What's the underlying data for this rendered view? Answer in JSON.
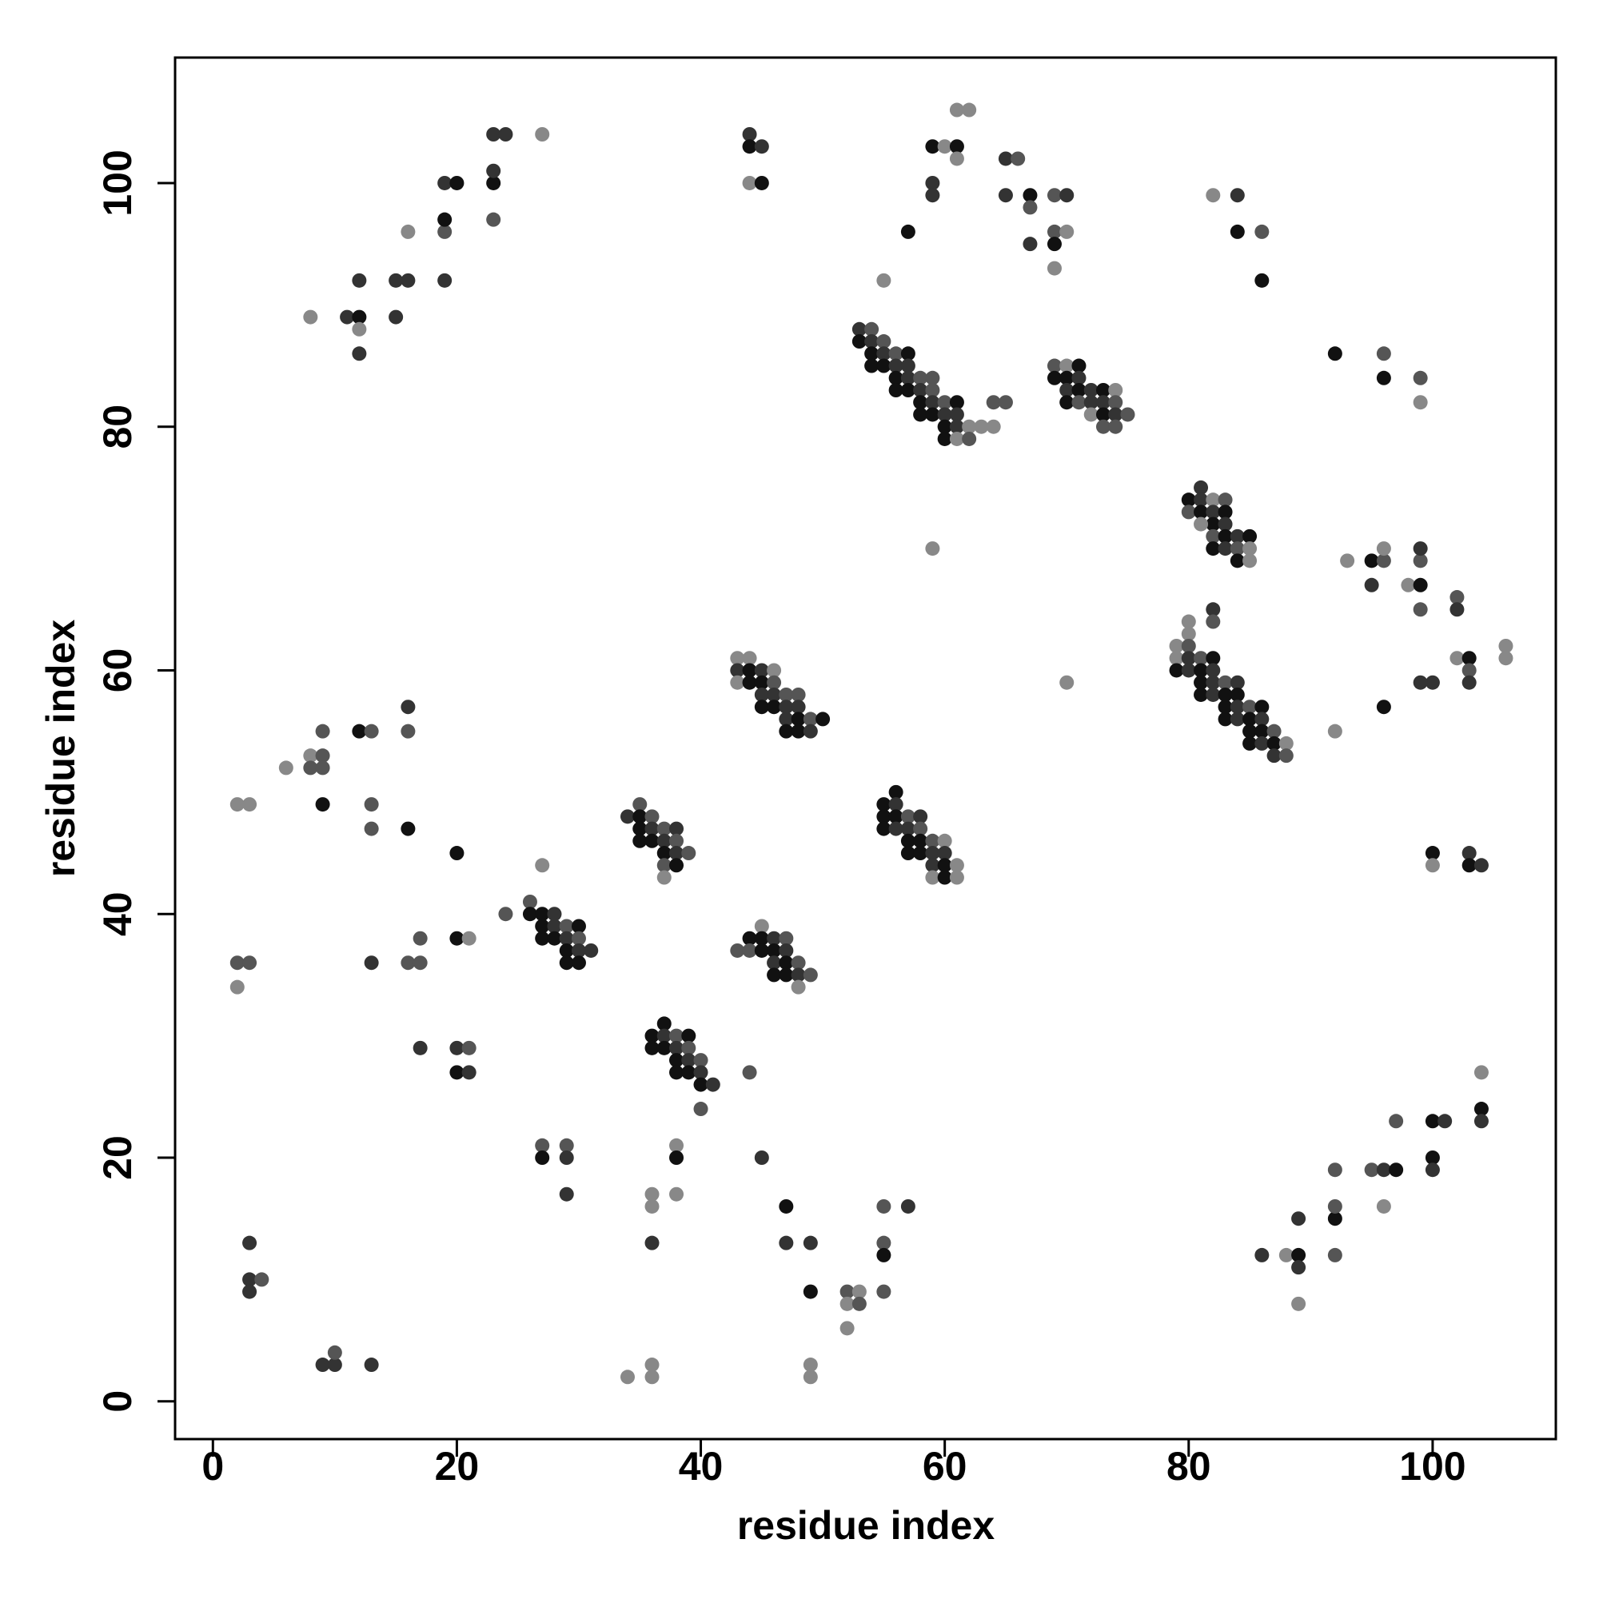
{
  "chart_data": {
    "type": "scatter",
    "x_label": "residue index",
    "y_label": "residue index",
    "xlim": [
      -3.1,
      110.1
    ],
    "ylim": [
      -3.1,
      110.3
    ],
    "xticks": [
      0,
      20,
      40,
      60,
      80,
      100
    ],
    "yticks": [
      0,
      20,
      40,
      60,
      80,
      100
    ],
    "x": [
      8,
      11,
      12,
      12,
      12,
      12,
      15,
      16,
      15,
      16,
      19,
      19,
      19,
      19,
      20,
      23,
      23,
      23,
      23,
      24,
      27,
      44,
      44,
      45,
      44,
      45,
      55,
      57,
      59,
      60,
      61,
      61,
      61,
      62,
      59,
      59,
      65,
      66,
      65,
      67,
      67,
      67,
      69,
      70,
      69,
      70,
      69,
      69,
      82,
      84,
      84,
      86,
      86,
      53,
      54,
      53,
      54,
      55,
      54,
      55,
      56,
      57,
      54,
      55,
      56,
      57,
      56,
      57,
      58,
      59,
      56,
      57,
      58,
      59,
      58,
      59,
      60,
      61,
      58,
      59,
      60,
      61,
      60,
      61,
      62,
      63,
      64,
      60,
      61,
      62,
      64,
      65,
      69,
      70,
      71,
      69,
      70,
      71,
      70,
      71,
      72,
      73,
      74,
      70,
      71,
      72,
      73,
      74,
      72,
      73,
      74,
      75,
      73,
      74,
      92,
      96,
      96,
      99,
      99,
      81,
      80,
      81,
      82,
      83,
      80,
      81,
      82,
      83,
      82,
      83,
      81,
      82,
      83,
      84,
      85,
      82,
      83,
      84,
      85,
      84,
      85,
      59,
      93,
      95,
      96,
      96,
      95,
      98,
      99,
      99,
      99,
      99,
      102,
      102,
      102,
      103,
      103,
      103,
      100,
      99,
      96,
      92,
      106,
      106,
      70,
      80,
      80,
      79,
      80,
      79,
      80,
      81,
      82,
      79,
      80,
      81,
      82,
      82,
      82,
      81,
      82,
      83,
      84,
      81,
      82,
      83,
      84,
      83,
      84,
      85,
      86,
      83,
      84,
      85,
      86,
      85,
      86,
      87,
      85,
      86,
      87,
      88,
      87,
      88,
      43,
      44,
      43,
      44,
      45,
      46,
      43,
      44,
      45,
      46,
      45,
      46,
      47,
      48,
      45,
      46,
      47,
      48,
      47,
      48,
      49,
      50,
      47,
      48,
      49,
      56,
      55,
      56,
      55,
      56,
      57,
      58,
      55,
      56,
      57,
      58,
      57,
      58,
      59,
      60,
      57,
      58,
      59,
      60,
      59,
      60,
      61,
      59,
      60,
      61,
      35,
      34,
      35,
      36,
      35,
      36,
      37,
      38,
      35,
      36,
      37,
      38,
      37,
      38,
      39,
      37,
      38,
      37,
      2,
      3,
      6,
      8,
      9,
      8,
      9,
      9,
      12,
      13,
      16,
      16,
      9,
      13,
      13,
      16,
      20,
      2,
      3,
      2,
      13,
      16,
      17,
      17,
      20,
      21,
      24,
      26,
      26,
      27,
      28,
      27,
      28,
      29,
      30,
      27,
      28,
      29,
      30,
      29,
      30,
      31,
      29,
      30,
      27,
      45,
      43,
      44,
      45,
      46,
      47,
      44,
      45,
      46,
      47,
      46,
      47,
      48,
      46,
      47,
      48,
      49,
      48,
      37,
      36,
      37,
      38,
      39,
      36,
      37,
      38,
      39,
      38,
      39,
      40,
      38,
      39,
      40,
      40,
      41,
      40,
      44,
      17,
      20,
      21,
      20,
      21,
      27,
      29,
      27,
      29,
      29,
      38,
      38,
      38,
      36,
      36,
      36,
      45,
      47,
      47,
      49,
      49,
      52,
      53,
      52,
      53,
      52,
      55,
      57,
      55,
      55,
      55,
      49,
      49,
      36,
      36,
      34,
      3,
      3,
      4,
      3,
      9,
      10,
      10,
      13,
      86,
      88,
      89,
      89,
      89,
      89,
      92,
      92,
      92,
      92,
      95,
      96,
      97,
      96,
      97,
      100,
      101,
      100,
      100,
      104,
      104,
      104,
      100,
      100,
      103,
      103,
      104
    ],
    "values": [
      89,
      89,
      89,
      88,
      86,
      92,
      92,
      92,
      89,
      96,
      96,
      97,
      92,
      100,
      100,
      97,
      100,
      101,
      104,
      104,
      104,
      104,
      103,
      103,
      100,
      100,
      92,
      96,
      103,
      103,
      103,
      102,
      106,
      106,
      100,
      99,
      102,
      102,
      99,
      99,
      98,
      95,
      99,
      99,
      96,
      96,
      95,
      93,
      99,
      99,
      96,
      96,
      92,
      88,
      88,
      87,
      87,
      87,
      86,
      86,
      86,
      86,
      85,
      85,
      85,
      85,
      84,
      84,
      84,
      84,
      83,
      83,
      83,
      83,
      82,
      82,
      82,
      82,
      81,
      81,
      81,
      81,
      80,
      80,
      80,
      80,
      80,
      79,
      79,
      79,
      82,
      82,
      85,
      85,
      85,
      84,
      84,
      84,
      83,
      83,
      83,
      83,
      83,
      82,
      82,
      82,
      82,
      82,
      81,
      81,
      81,
      81,
      80,
      80,
      86,
      86,
      84,
      84,
      82,
      75,
      74,
      74,
      74,
      74,
      73,
      73,
      73,
      73,
      72,
      72,
      72,
      71,
      71,
      71,
      71,
      70,
      70,
      70,
      70,
      69,
      69,
      70,
      69,
      69,
      69,
      70,
      67,
      67,
      67,
      69,
      70,
      65,
      66,
      65,
      61,
      61,
      60,
      59,
      59,
      59,
      57,
      55,
      62,
      61,
      59,
      64,
      63,
      62,
      62,
      61,
      61,
      61,
      61,
      60,
      60,
      60,
      60,
      65,
      64,
      59,
      59,
      59,
      59,
      58,
      58,
      58,
      58,
      57,
      57,
      57,
      57,
      56,
      56,
      56,
      56,
      55,
      55,
      55,
      54,
      54,
      54,
      54,
      53,
      53,
      61,
      61,
      60,
      60,
      60,
      60,
      59,
      59,
      59,
      59,
      58,
      58,
      58,
      58,
      57,
      57,
      57,
      57,
      56,
      56,
      56,
      56,
      55,
      55,
      55,
      50,
      49,
      49,
      48,
      48,
      48,
      48,
      47,
      47,
      47,
      47,
      46,
      46,
      46,
      46,
      45,
      45,
      45,
      45,
      44,
      44,
      44,
      43,
      43,
      43,
      49,
      48,
      48,
      48,
      47,
      47,
      47,
      47,
      46,
      46,
      46,
      46,
      45,
      45,
      45,
      44,
      44,
      43,
      49,
      49,
      52,
      53,
      53,
      52,
      52,
      55,
      55,
      55,
      57,
      55,
      49,
      49,
      47,
      47,
      45,
      36,
      36,
      34,
      36,
      36,
      36,
      38,
      38,
      38,
      40,
      41,
      40,
      40,
      40,
      39,
      39,
      39,
      39,
      38,
      38,
      38,
      38,
      37,
      37,
      37,
      36,
      36,
      44,
      39,
      37,
      38,
      38,
      38,
      38,
      37,
      37,
      37,
      37,
      36,
      36,
      36,
      35,
      35,
      35,
      35,
      34,
      31,
      30,
      30,
      30,
      30,
      29,
      29,
      29,
      29,
      28,
      28,
      28,
      27,
      27,
      27,
      26,
      26,
      24,
      27,
      29,
      29,
      29,
      27,
      27,
      21,
      21,
      20,
      20,
      17,
      21,
      20,
      17,
      17,
      16,
      13,
      20,
      16,
      13,
      13,
      9,
      9,
      9,
      8,
      8,
      6,
      16,
      16,
      13,
      12,
      9,
      3,
      2,
      3,
      2,
      2,
      13,
      10,
      10,
      9,
      3,
      3,
      4,
      3,
      12,
      12,
      12,
      11,
      15,
      8,
      12,
      15,
      16,
      19,
      19,
      19,
      19,
      16,
      23,
      23,
      23,
      20,
      19,
      24,
      23,
      27,
      45,
      44,
      45,
      44,
      44
    ],
    "colors": [
      "#888",
      "#333",
      "#111",
      "#888",
      "#333",
      "#333",
      "#333",
      "#333",
      "#333",
      "#888",
      "#555",
      "#111",
      "#333",
      "#333",
      "#111",
      "#555",
      "#111",
      "#333",
      "#333",
      "#333",
      "#888",
      "#333",
      "#111",
      "#333",
      "#888",
      "#111",
      "#888",
      "#111",
      "#111",
      "#888",
      "#111",
      "#888",
      "#888",
      "#888",
      "#333",
      "#333",
      "#333",
      "#555",
      "#333",
      "#111",
      "#555",
      "#333",
      "#555",
      "#333",
      "#555",
      "#888",
      "#111",
      "#888",
      "#888",
      "#333",
      "#111",
      "#555",
      "#111",
      "#333",
      "#555",
      "#111",
      "#333",
      "#555",
      "#111",
      "#333",
      "#555",
      "#111",
      "#111",
      "#111",
      "#333",
      "#333",
      "#111",
      "#333",
      "#555",
      "#555",
      "#111",
      "#111",
      "#333",
      "#555",
      "#111",
      "#333",
      "#555",
      "#111",
      "#111",
      "#111",
      "#333",
      "#333",
      "#111",
      "#333",
      "#888",
      "#888",
      "#888",
      "#111",
      "#888",
      "#555",
      "#555",
      "#555",
      "#555",
      "#888",
      "#111",
      "#111",
      "#111",
      "#333",
      "#333",
      "#111",
      "#333",
      "#111",
      "#888",
      "#111",
      "#555",
      "#333",
      "#333",
      "#555",
      "#888",
      "#111",
      "#333",
      "#555",
      "#555",
      "#555",
      "#111",
      "#555",
      "#111",
      "#555",
      "#888",
      "#333",
      "#111",
      "#333",
      "#888",
      "#555",
      "#555",
      "#111",
      "#333",
      "#111",
      "#111",
      "#333",
      "#888",
      "#555",
      "#111",
      "#333",
      "#111",
      "#111",
      "#333",
      "#555",
      "#888",
      "#111",
      "#888",
      "#888",
      "#888",
      "#111",
      "#555",
      "#888",
      "#333",
      "#888",
      "#111",
      "#555",
      "#333",
      "#555",
      "#555",
      "#333",
      "#888",
      "#111",
      "#555",
      "#333",
      "#333",
      "#333",
      "#111",
      "#888",
      "#888",
      "#888",
      "#888",
      "#888",
      "#888",
      "#888",
      "#555",
      "#888",
      "#333",
      "#555",
      "#111",
      "#111",
      "#333",
      "#111",
      "#333",
      "#333",
      "#555",
      "#111",
      "#333",
      "#555",
      "#333",
      "#111",
      "#333",
      "#111",
      "#111",
      "#111",
      "#333",
      "#555",
      "#111",
      "#111",
      "#333",
      "#111",
      "#333",
      "#111",
      "#111",
      "#555",
      "#111",
      "#333",
      "#111",
      "#888",
      "#333",
      "#555",
      "#888",
      "#888",
      "#333",
      "#111",
      "#333",
      "#888",
      "#888",
      "#111",
      "#111",
      "#555",
      "#333",
      "#333",
      "#555",
      "#555",
      "#111",
      "#111",
      "#333",
      "#333",
      "#333",
      "#111",
      "#555",
      "#111",
      "#111",
      "#111",
      "#333",
      "#111",
      "#111",
      "#333",
      "#111",
      "#111",
      "#555",
      "#333",
      "#111",
      "#333",
      "#333",
      "#555",
      "#111",
      "#111",
      "#555",
      "#888",
      "#111",
      "#111",
      "#333",
      "#333",
      "#333",
      "#111",
      "#888",
      "#888",
      "#111",
      "#888",
      "#555",
      "#333",
      "#111",
      "#555",
      "#111",
      "#333",
      "#555",
      "#333",
      "#111",
      "#111",
      "#333",
      "#555",
      "#111",
      "#333",
      "#555",
      "#555",
      "#111",
      "#888",
      "#888",
      "#888",
      "#888",
      "#888",
      "#555",
      "#555",
      "#555",
      "#555",
      "#111",
      "#555",
      "#333",
      "#555",
      "#111",
      "#555",
      "#555",
      "#111",
      "#111",
      "#555",
      "#555",
      "#888",
      "#333",
      "#555",
      "#555",
      "#555",
      "#111",
      "#888",
      "#555",
      "#555",
      "#111",
      "#111",
      "#333",
      "#111",
      "#333",
      "#555",
      "#111",
      "#111",
      "#111",
      "#333",
      "#555",
      "#111",
      "#333",
      "#333",
      "#111",
      "#111",
      "#888",
      "#888",
      "#555",
      "#111",
      "#111",
      "#333",
      "#555",
      "#555",
      "#111",
      "#111",
      "#333",
      "#333",
      "#111",
      "#555",
      "#111",
      "#111",
      "#333",
      "#555",
      "#888",
      "#111",
      "#111",
      "#333",
      "#555",
      "#111",
      "#111",
      "#111",
      "#333",
      "#555",
      "#111",
      "#333",
      "#555",
      "#111",
      "#111",
      "#333",
      "#111",
      "#333",
      "#555",
      "#555",
      "#333",
      "#333",
      "#555",
      "#111",
      "#333",
      "#555",
      "#555",
      "#111",
      "#333",
      "#333",
      "#888",
      "#111",
      "#888",
      "#888",
      "#888",
      "#333",
      "#333",
      "#111",
      "#333",
      "#333",
      "#111",
      "#555",
      "#888",
      "#888",
      "#555",
      "#888",
      "#555",
      "#333",
      "#555",
      "#111",
      "#555",
      "#888",
      "#888",
      "#888",
      "#888",
      "#888",
      "#333",
      "#333",
      "#555",
      "#333",
      "#333",
      "#333",
      "#555",
      "#333",
      "#333",
      "#888",
      "#111",
      "#333",
      "#333",
      "#888",
      "#555",
      "#111",
      "#555",
      "#555",
      "#555",
      "#333",
      "#111",
      "#888",
      "#555",
      "#111",
      "#333",
      "#111",
      "#333",
      "#111",
      "#333",
      "#888",
      "#111",
      "#888",
      "#333",
      "#111",
      "#333"
    ]
  }
}
